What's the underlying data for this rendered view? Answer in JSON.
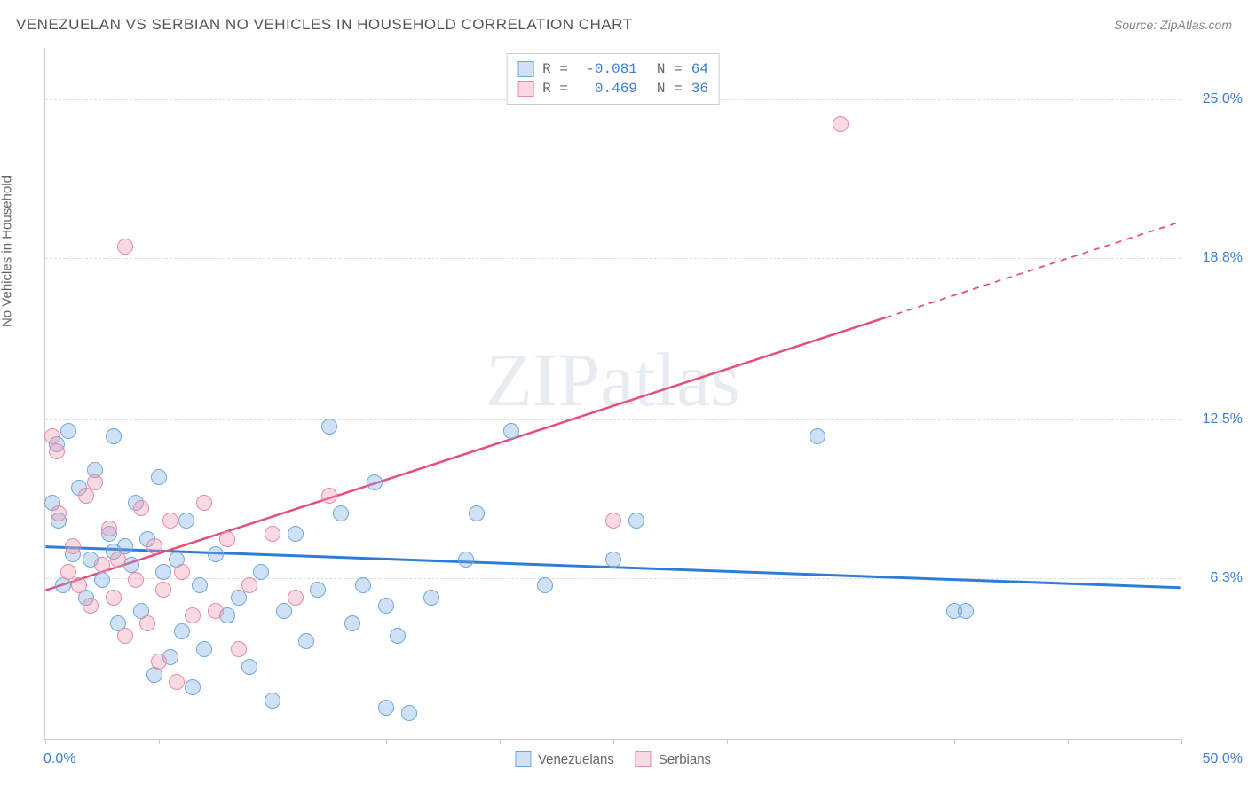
{
  "title": "VENEZUELAN VS SERBIAN NO VEHICLES IN HOUSEHOLD CORRELATION CHART",
  "source": "Source: ZipAtlas.com",
  "y_axis_label": "No Vehicles in Household",
  "watermark": "ZIPatlas",
  "chart": {
    "type": "scatter",
    "xlim": [
      0,
      50
    ],
    "ylim": [
      0,
      27
    ],
    "x_ticks": [
      0,
      5,
      10,
      15,
      20,
      25,
      30,
      35,
      40,
      45,
      50
    ],
    "x_start_label": "0.0%",
    "x_end_label": "50.0%",
    "y_gridlines": [
      6.3,
      12.5,
      18.8,
      25.0
    ],
    "y_tick_labels": [
      "6.3%",
      "12.5%",
      "18.8%",
      "25.0%"
    ],
    "axis_label_color": "#3b7dd8",
    "grid_color": "#dddddd",
    "series": [
      {
        "name": "Venezuelans",
        "fill": "rgba(120,170,230,0.35)",
        "stroke": "#6fa8e0",
        "R_label": "R =",
        "R": "-0.081",
        "N_label": "N =",
        "N": "64",
        "trend": {
          "x1": 0,
          "y1": 7.5,
          "x2": 50,
          "y2": 5.9,
          "solid_until_x": 50,
          "color": "#2e7cd6",
          "width": 3
        },
        "points": [
          [
            0.3,
            9.2
          ],
          [
            0.5,
            11.5
          ],
          [
            0.6,
            8.5
          ],
          [
            0.8,
            6.0
          ],
          [
            1.0,
            12.0
          ],
          [
            1.2,
            7.2
          ],
          [
            1.5,
            9.8
          ],
          [
            1.8,
            5.5
          ],
          [
            2.0,
            7.0
          ],
          [
            2.2,
            10.5
          ],
          [
            2.5,
            6.2
          ],
          [
            2.8,
            8.0
          ],
          [
            3.0,
            7.3
          ],
          [
            3.0,
            11.8
          ],
          [
            3.2,
            4.5
          ],
          [
            3.5,
            7.5
          ],
          [
            3.8,
            6.8
          ],
          [
            4.0,
            9.2
          ],
          [
            4.2,
            5.0
          ],
          [
            4.5,
            7.8
          ],
          [
            4.8,
            2.5
          ],
          [
            5.0,
            10.2
          ],
          [
            5.2,
            6.5
          ],
          [
            5.5,
            3.2
          ],
          [
            5.8,
            7.0
          ],
          [
            6.0,
            4.2
          ],
          [
            6.2,
            8.5
          ],
          [
            6.5,
            2.0
          ],
          [
            6.8,
            6.0
          ],
          [
            7.0,
            3.5
          ],
          [
            7.5,
            7.2
          ],
          [
            8.0,
            4.8
          ],
          [
            8.5,
            5.5
          ],
          [
            9.0,
            2.8
          ],
          [
            9.5,
            6.5
          ],
          [
            10.0,
            1.5
          ],
          [
            10.5,
            5.0
          ],
          [
            11.0,
            8.0
          ],
          [
            11.5,
            3.8
          ],
          [
            12.0,
            5.8
          ],
          [
            12.5,
            12.2
          ],
          [
            13.0,
            8.8
          ],
          [
            13.5,
            4.5
          ],
          [
            14.0,
            6.0
          ],
          [
            14.5,
            10.0
          ],
          [
            15.0,
            1.2
          ],
          [
            15.0,
            5.2
          ],
          [
            15.5,
            4.0
          ],
          [
            16.0,
            1.0
          ],
          [
            17.0,
            5.5
          ],
          [
            18.5,
            7.0
          ],
          [
            19.0,
            8.8
          ],
          [
            20.5,
            12.0
          ],
          [
            22.0,
            6.0
          ],
          [
            25.0,
            7.0
          ],
          [
            26.0,
            8.5
          ],
          [
            34.0,
            11.8
          ],
          [
            40.0,
            5.0
          ],
          [
            40.5,
            5.0
          ]
        ]
      },
      {
        "name": "Serbians",
        "fill": "rgba(240,150,170,0.35)",
        "stroke": "#e88aa5",
        "R_label": "R =",
        "R": "0.469",
        "N_label": "N =",
        "N": "36",
        "trend": {
          "x1": 0,
          "y1": 5.8,
          "x2": 50,
          "y2": 20.2,
          "solid_until_x": 37,
          "color": "#e84d7a",
          "width": 2.5
        },
        "points": [
          [
            0.3,
            11.8
          ],
          [
            0.5,
            11.2
          ],
          [
            0.6,
            8.8
          ],
          [
            1.0,
            6.5
          ],
          [
            1.2,
            7.5
          ],
          [
            1.5,
            6.0
          ],
          [
            1.8,
            9.5
          ],
          [
            2.0,
            5.2
          ],
          [
            2.2,
            10.0
          ],
          [
            2.5,
            6.8
          ],
          [
            2.8,
            8.2
          ],
          [
            3.0,
            5.5
          ],
          [
            3.2,
            7.0
          ],
          [
            3.5,
            4.0
          ],
          [
            3.5,
            19.2
          ],
          [
            4.0,
            6.2
          ],
          [
            4.2,
            9.0
          ],
          [
            4.5,
            4.5
          ],
          [
            4.8,
            7.5
          ],
          [
            5.0,
            3.0
          ],
          [
            5.2,
            5.8
          ],
          [
            5.5,
            8.5
          ],
          [
            5.8,
            2.2
          ],
          [
            6.0,
            6.5
          ],
          [
            6.5,
            4.8
          ],
          [
            7.0,
            9.2
          ],
          [
            7.5,
            5.0
          ],
          [
            8.0,
            7.8
          ],
          [
            8.5,
            3.5
          ],
          [
            9.0,
            6.0
          ],
          [
            10.0,
            8.0
          ],
          [
            11.0,
            5.5
          ],
          [
            12.5,
            9.5
          ],
          [
            25.0,
            8.5
          ],
          [
            35.0,
            24.0
          ]
        ]
      }
    ]
  },
  "legend": {
    "items": [
      {
        "label": "Venezuelans",
        "fill": "rgba(120,170,230,0.35)",
        "stroke": "#6fa8e0"
      },
      {
        "label": "Serbians",
        "fill": "rgba(240,150,170,0.35)",
        "stroke": "#e88aa5"
      }
    ]
  }
}
